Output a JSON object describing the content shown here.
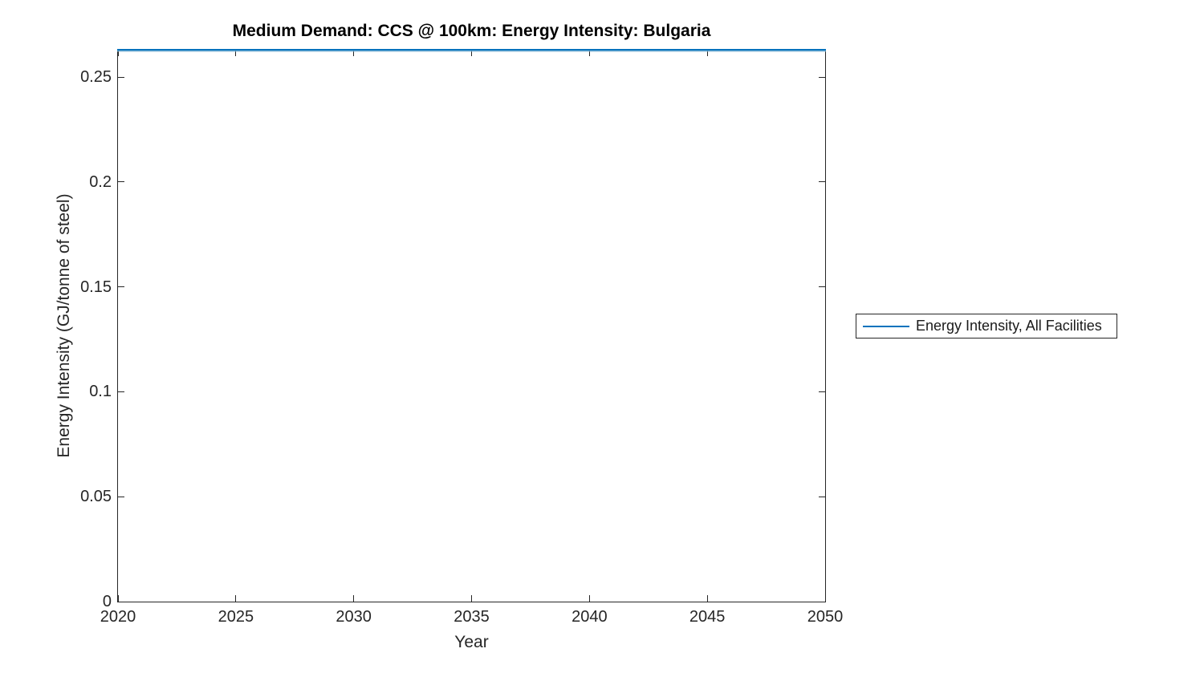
{
  "figure": {
    "title": "Medium Demand: CCS @ 100km: Energy Intensity: Bulgaria",
    "xlabel": "Year",
    "ylabel": "Energy Intensity (GJ/tonne of steel)",
    "background_color": "#ffffff",
    "axis_color": "#262626"
  },
  "legend": {
    "position": "right-outside",
    "items": [
      {
        "label": "Energy Intensity, All Facilities",
        "color": "#0072BD",
        "marker": "line"
      }
    ]
  },
  "chart_data": {
    "type": "line",
    "title": "Medium Demand: CCS @ 100km: Energy Intensity: Bulgaria",
    "xlabel": "Year",
    "ylabel": "Energy Intensity (GJ/tonne of steel)",
    "xlim": [
      2020,
      2050
    ],
    "ylim": [
      0,
      0.263
    ],
    "x_ticks": [
      2020,
      2025,
      2030,
      2035,
      2040,
      2045,
      2050
    ],
    "x_tick_labels": [
      "2020",
      "2025",
      "2030",
      "2035",
      "2040",
      "2045",
      "2050"
    ],
    "y_ticks": [
      0,
      0.05,
      0.1,
      0.15,
      0.2,
      0.25
    ],
    "y_tick_labels": [
      "0",
      "0.05",
      "0.1",
      "0.15",
      "0.2",
      "0.25"
    ],
    "grid": false,
    "box": true,
    "tick_direction": "in",
    "legend_position": "right-outside",
    "series": [
      {
        "name": "Energy Intensity, All Facilities",
        "color": "#0072BD",
        "x": [
          2020,
          2025,
          2030,
          2035,
          2040,
          2045,
          2050
        ],
        "y": [
          0.263,
          0.263,
          0.263,
          0.263,
          0.263,
          0.263,
          0.263
        ]
      }
    ]
  }
}
